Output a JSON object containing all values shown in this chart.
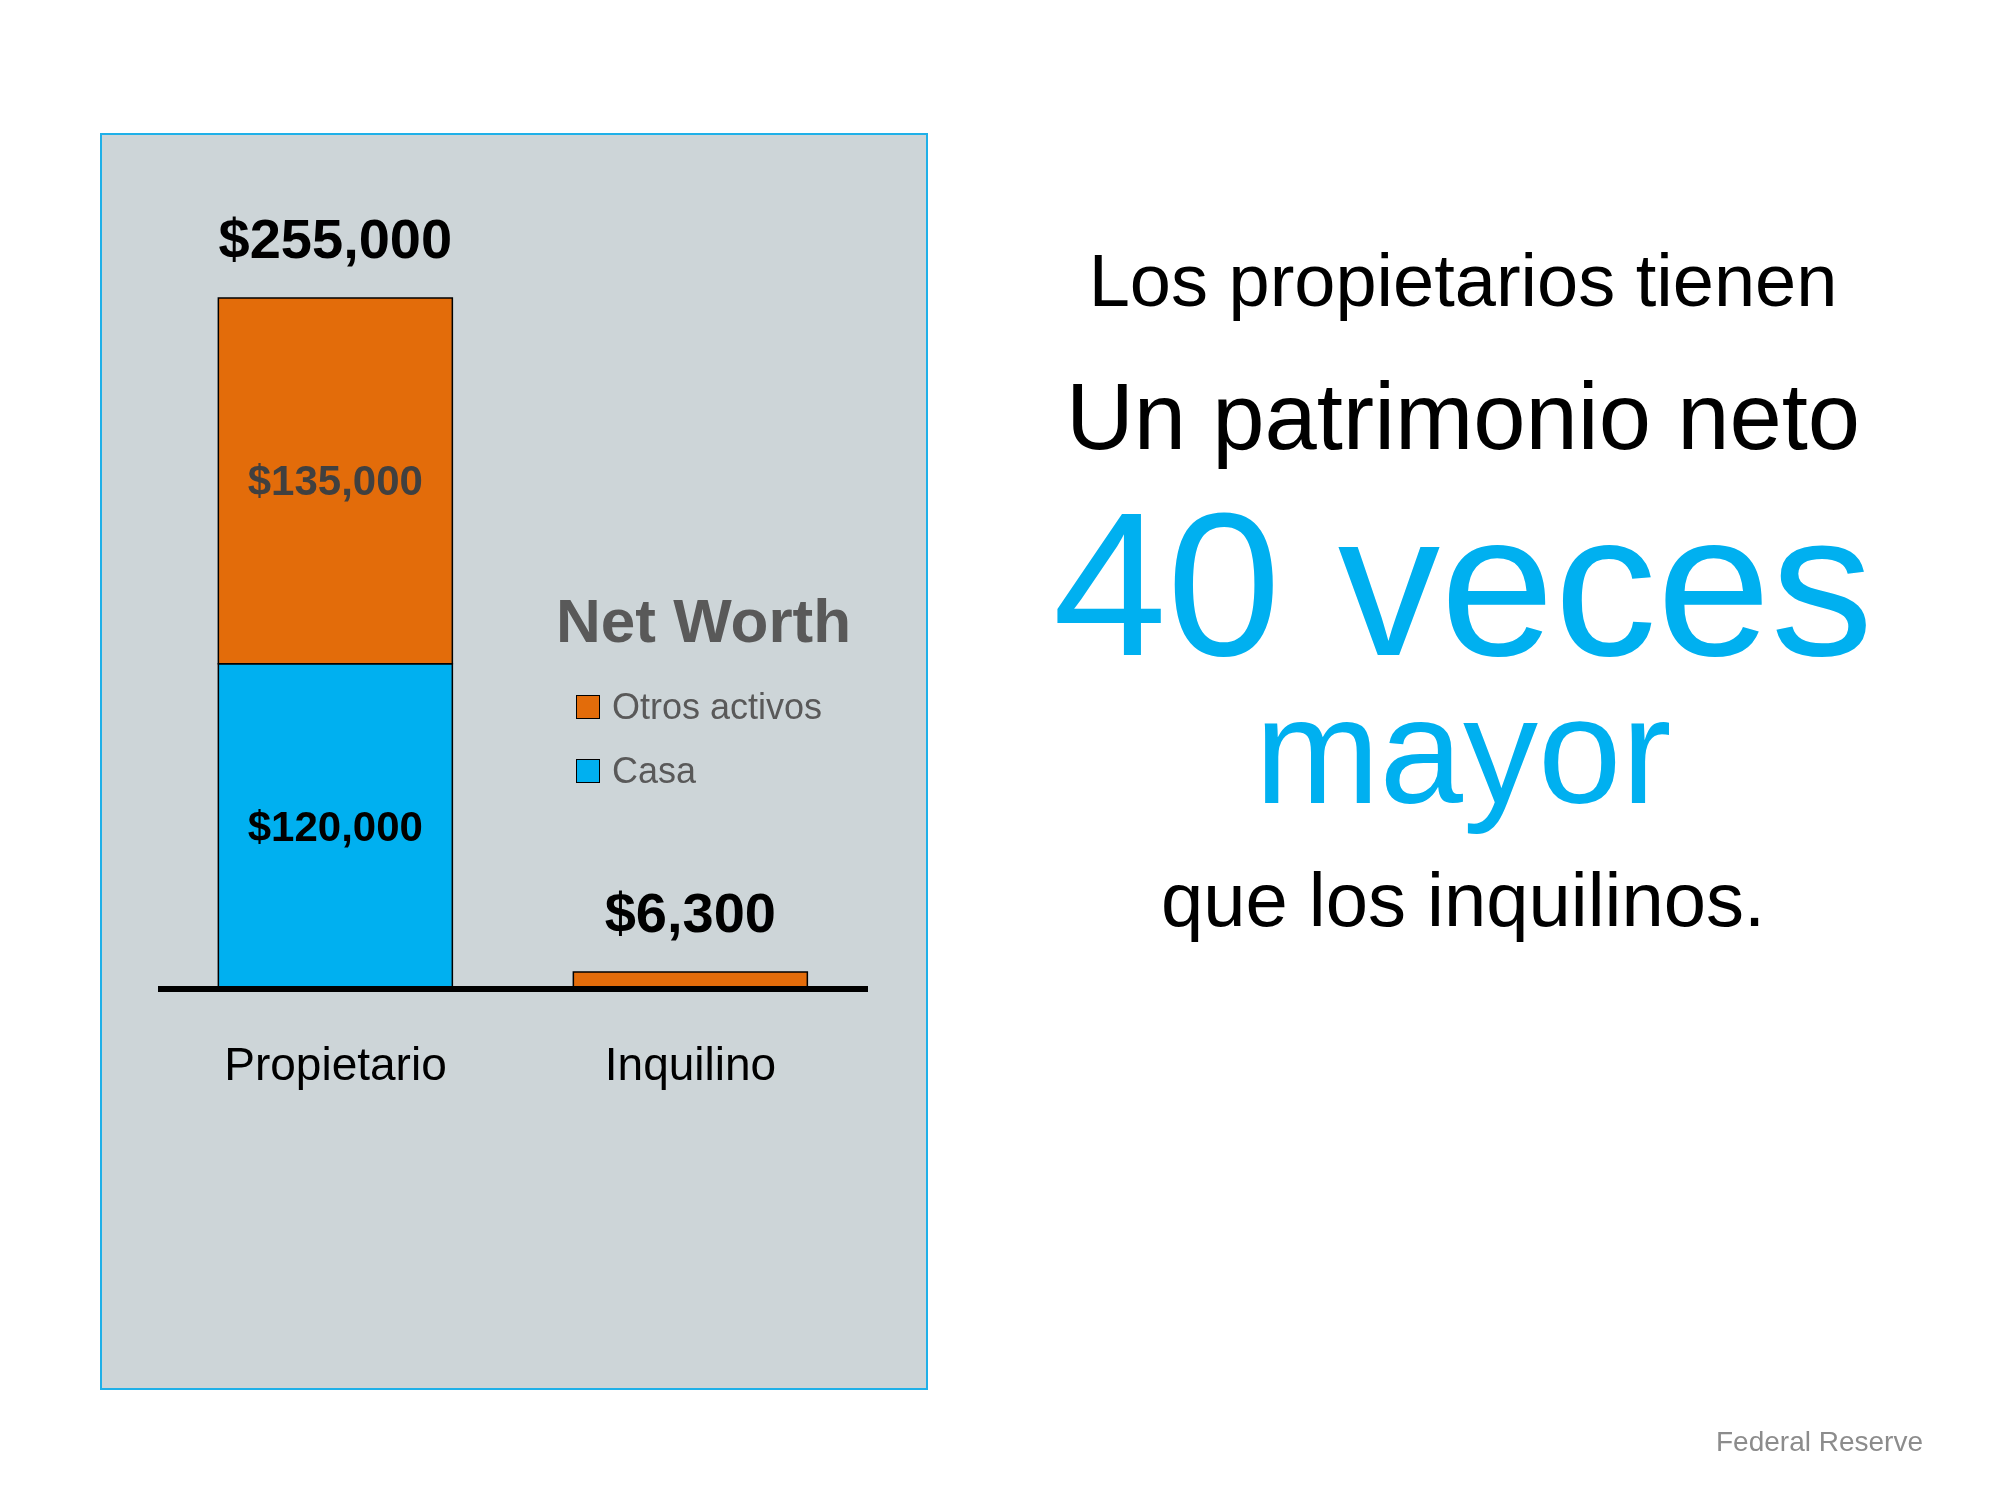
{
  "chart_data": {
    "type": "bar",
    "stacked": true,
    "categories": [
      "Propietario",
      "Inquilino"
    ],
    "series": [
      {
        "name": "Casa",
        "color": "#00b0f0",
        "values": [
          120000,
          null
        ],
        "value_labels": [
          "$120,000",
          null
        ]
      },
      {
        "name": "Otros activos",
        "color": "#e36c0a",
        "values": [
          135000,
          6300
        ],
        "value_labels": [
          "$135,000",
          null
        ]
      }
    ],
    "totals": [
      "$255,000",
      "$6,300"
    ],
    "legend_title": "Net Worth",
    "legend": "right",
    "grid": false,
    "annotations": [
      "Los propietarios tienen",
      "Un patrimonio neto",
      "40 veces",
      "mayor",
      "que los inquilinos.",
      "Federal Reserve"
    ]
  }
}
